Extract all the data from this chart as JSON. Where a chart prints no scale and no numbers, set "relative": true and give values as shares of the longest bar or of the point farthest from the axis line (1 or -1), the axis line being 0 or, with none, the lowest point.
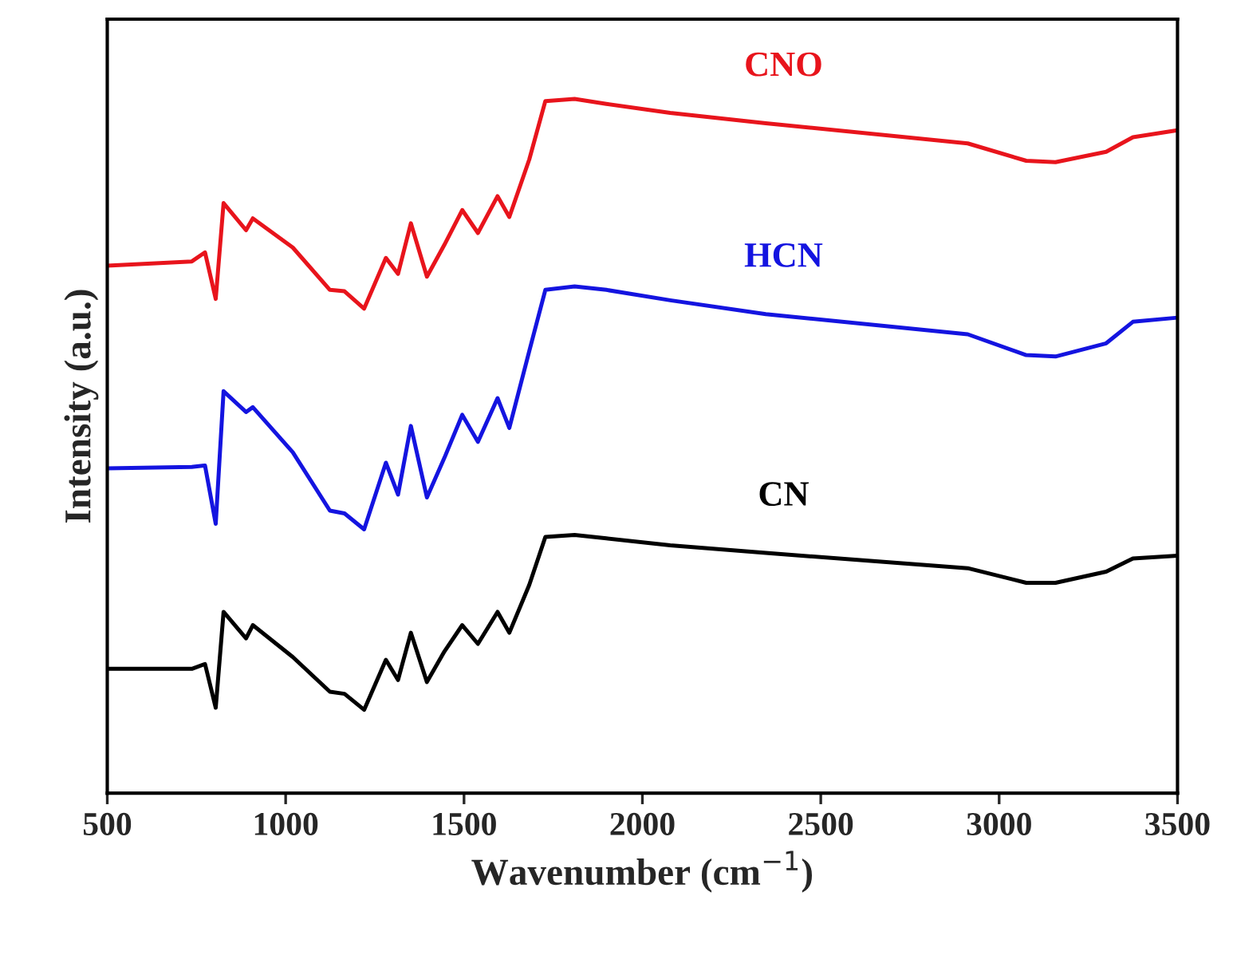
{
  "chart_data": {
    "type": "line",
    "relative": true,
    "xlabel": "Wavenumber (cm$^{−1}$)",
    "ylabel": "Intensity (a.u.)",
    "xlim": [
      500,
      3500
    ],
    "xticks": [
      500,
      1000,
      1500,
      2000,
      2500,
      3000,
      3500
    ],
    "tick_labels": "x",
    "grid": false,
    "legend": false,
    "marker": "none",
    "line_style": "solid",
    "x": [
      500,
      737,
      774,
      804,
      826,
      889,
      908,
      1020,
      1124,
      1165,
      1220,
      1281,
      1315,
      1351,
      1396,
      1445,
      1495,
      1539,
      1594,
      1627,
      1683,
      1728,
      1810,
      1899,
      2078,
      2346,
      2912,
      3076,
      3158,
      3300,
      3375,
      3500
    ],
    "series": [
      {
        "name": "CNO",
        "color": "#e8141c",
        "values": [
          0.76,
          0.766,
          0.779,
          0.712,
          0.85,
          0.811,
          0.828,
          0.786,
          0.725,
          0.723,
          0.698,
          0.771,
          0.748,
          0.821,
          0.744,
          0.79,
          0.84,
          0.807,
          0.86,
          0.83,
          0.913,
          0.997,
          1.0,
          0.993,
          0.98,
          0.965,
          0.936,
          0.911,
          0.909,
          0.924,
          0.945,
          0.955
        ]
      },
      {
        "name": "HCN",
        "color": "#1414e0",
        "values": [
          0.468,
          0.47,
          0.472,
          0.388,
          0.579,
          0.549,
          0.556,
          0.491,
          0.407,
          0.403,
          0.38,
          0.476,
          0.43,
          0.529,
          0.426,
          0.483,
          0.545,
          0.506,
          0.569,
          0.526,
          0.637,
          0.725,
          0.73,
          0.725,
          0.71,
          0.69,
          0.661,
          0.631,
          0.629,
          0.648,
          0.679,
          0.685
        ]
      },
      {
        "name": "CN",
        "color": "#000000",
        "values": [
          0.179,
          0.179,
          0.186,
          0.123,
          0.261,
          0.223,
          0.242,
          0.196,
          0.146,
          0.143,
          0.12,
          0.192,
          0.163,
          0.231,
          0.16,
          0.204,
          0.242,
          0.215,
          0.261,
          0.231,
          0.3,
          0.369,
          0.372,
          0.367,
          0.357,
          0.346,
          0.324,
          0.303,
          0.303,
          0.319,
          0.338,
          0.342
        ]
      }
    ]
  }
}
